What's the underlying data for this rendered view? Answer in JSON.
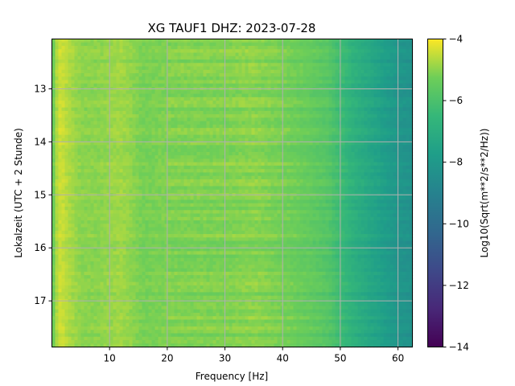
{
  "chart_data": {
    "type": "heatmap",
    "title": "XG TAUF1  DHZ: 2023-07-28",
    "xlabel": "Frequency [Hz]",
    "ylabel": "Lokalzeit (UTC + 2 Stunde)",
    "colorbar_label": "Log10(Sqrt(m**2/s**2/Hz))",
    "colormap": "viridis",
    "xlim": [
      0,
      62.5
    ],
    "ylim": [
      12.06,
      17.87
    ],
    "y_inverted": true,
    "x_ticks": [
      10,
      20,
      30,
      40,
      50,
      60
    ],
    "x_tick_labels": [
      "10",
      "20",
      "30",
      "40",
      "50",
      "60"
    ],
    "y_ticks": [
      13,
      14,
      15,
      16,
      17
    ],
    "y_tick_labels": [
      "13",
      "14",
      "15",
      "16",
      "17"
    ],
    "colorbar_range": [
      -14,
      -4
    ],
    "colorbar_ticks": [
      -4,
      -6,
      -8,
      -10,
      -12,
      -14
    ],
    "colorbar_tick_labels": [
      "−4",
      "−6",
      "−8",
      "−10",
      "−12",
      "−14"
    ],
    "grid": true,
    "frequency_profile": {
      "frequency_hz": [
        0.5,
        1,
        2,
        3,
        5,
        8,
        10,
        12,
        14,
        16,
        20,
        25,
        30,
        35,
        40,
        45,
        48,
        50,
        52,
        55,
        58,
        60,
        62.5
      ],
      "log10_amplitude": [
        -5.3,
        -4.4,
        -4.5,
        -4.7,
        -5.0,
        -5.0,
        -4.9,
        -4.8,
        -5.0,
        -5.2,
        -5.1,
        -5.1,
        -5.1,
        -5.0,
        -5.2,
        -5.5,
        -5.8,
        -6.3,
        -6.8,
        -7.3,
        -7.8,
        -8.1,
        -8.3
      ]
    }
  }
}
